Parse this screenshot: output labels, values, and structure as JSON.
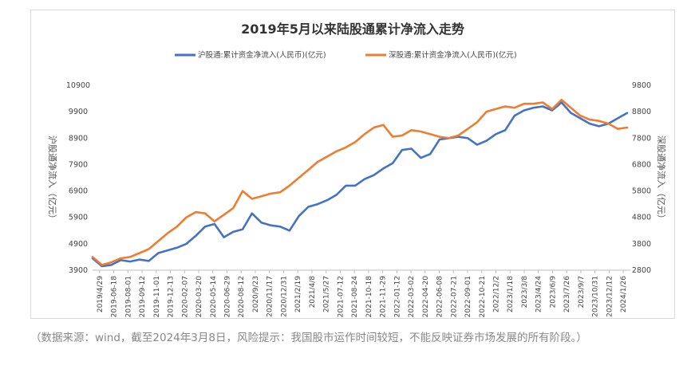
{
  "chart_data": {
    "type": "line",
    "title": "2019年5月以来陆股通累计净流入走势",
    "ylabel_left": "沪股通净流入（亿元）",
    "ylabel_right": "深股通净流入（亿元）",
    "ylim_left": [
      3900,
      10900
    ],
    "ylim_right": [
      2800,
      9800
    ],
    "yticks_left": [
      "10900",
      "9900",
      "8900",
      "7900",
      "6900",
      "5900",
      "4900",
      "3900"
    ],
    "yticks_right": [
      "9800",
      "8800",
      "7800",
      "6800",
      "5800",
      "4800",
      "3800",
      "2800"
    ],
    "x_tick_labels": [
      "2019/4/29",
      "2019-06-18",
      "2019-08-01",
      "2019-09-12",
      "2019-11-01",
      "2019-12-13",
      "2020-02-07",
      "2020-03-20",
      "2020-05-14",
      "2020-06-29",
      "2020-08-12",
      "2020/9/23",
      "2020/11/17",
      "2020/12/31",
      "2021/2/19",
      "2021/4/8",
      "2021/5/27",
      "2021-07-12",
      "2021-08-24",
      "2021-10-18",
      "2021-11-29",
      "2022-01-12",
      "2022-03-02",
      "2022-04-20",
      "2022-06-08",
      "2022-07-21",
      "2022-09-01",
      "2022-10-21",
      "2022/12/2",
      "2023/1/18",
      "2023/3/8",
      "2023/4/24",
      "2023/6/9",
      "2023/7/26",
      "2023/9/7",
      "2023/10/31",
      "2023/12/12",
      "2024/1/26"
    ],
    "grid": false,
    "legend_position": "top",
    "series": [
      {
        "name": "沪股通:累计资金净流入(人民币)(亿元)",
        "axis": "left",
        "color": "#4472c4",
        "values": [
          4350,
          4050,
          4100,
          4280,
          4230,
          4300,
          4250,
          4550,
          4650,
          4750,
          4900,
          5200,
          5550,
          5650,
          5150,
          5350,
          5450,
          6050,
          5700,
          5600,
          5550,
          5400,
          5950,
          6300,
          6400,
          6550,
          6750,
          7100,
          7100,
          7350,
          7500,
          7750,
          7950,
          8450,
          8500,
          8150,
          8300,
          8850,
          8900,
          8950,
          8900,
          8650,
          8800,
          9050,
          9200,
          9750,
          9950,
          10050,
          10100,
          9950,
          10250,
          9850,
          9650,
          9450,
          9350,
          9450,
          9650,
          9850
        ]
      },
      {
        "name": "深股通:累计资金净流入(人民币)(亿元)",
        "axis": "right",
        "color": "#ed7d31",
        "values": [
          3300,
          3000,
          3100,
          3250,
          3300,
          3450,
          3600,
          3900,
          4200,
          4450,
          4800,
          5000,
          4950,
          4650,
          4900,
          5150,
          5800,
          5500,
          5600,
          5700,
          5750,
          6000,
          6300,
          6600,
          6900,
          7100,
          7300,
          7450,
          7650,
          7950,
          8200,
          8300,
          7850,
          7900,
          8100,
          8050,
          7950,
          7850,
          7800,
          7900,
          8150,
          8400,
          8800,
          8900,
          9000,
          8950,
          9100,
          9100,
          9150,
          8900,
          9250,
          8950,
          8650,
          8500,
          8450,
          8350,
          8150,
          8200
        ]
      }
    ]
  },
  "footnote": "（数据来源：wind，截至2024年3月8日，风险提示：我国股市运作时间较短，不能反映证券市场发展的所有阶段。）"
}
